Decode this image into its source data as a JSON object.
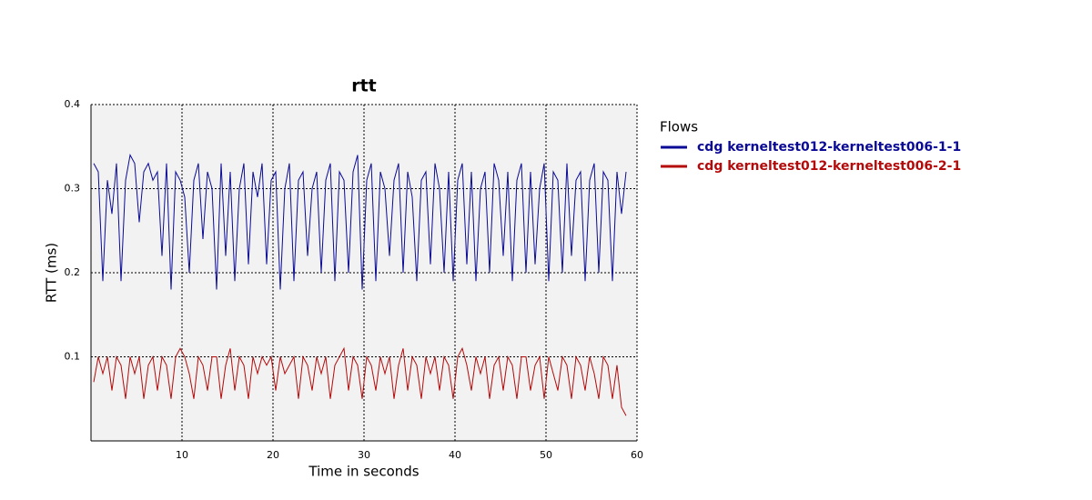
{
  "chart_data": {
    "type": "line",
    "title": "rtt",
    "x_label": "Time in seconds",
    "y_label": "RTT (ms)",
    "legend_title": "Flows",
    "legend": "right",
    "grid": true,
    "xlim": [
      0,
      60
    ],
    "xticks": [
      10,
      20,
      30,
      40,
      50,
      60
    ],
    "ylim": [
      0,
      0.4
    ],
    "yticks": [
      0.1,
      0.2,
      0.3,
      0.4
    ],
    "x": [
      0.3,
      0.8,
      1.3,
      1.8,
      2.3,
      2.8,
      3.3,
      3.8,
      4.3,
      4.8,
      5.3,
      5.8,
      6.3,
      6.8,
      7.3,
      7.8,
      8.3,
      8.8,
      9.3,
      9.8,
      10.3,
      10.8,
      11.3,
      11.8,
      12.3,
      12.8,
      13.3,
      13.8,
      14.3,
      14.8,
      15.3,
      15.8,
      16.3,
      16.8,
      17.3,
      17.8,
      18.3,
      18.8,
      19.3,
      19.8,
      20.3,
      20.8,
      21.3,
      21.8,
      22.3,
      22.8,
      23.3,
      23.8,
      24.3,
      24.8,
      25.3,
      25.8,
      26.3,
      26.8,
      27.3,
      27.8,
      28.3,
      28.8,
      29.3,
      29.8,
      30.3,
      30.8,
      31.3,
      31.8,
      32.3,
      32.8,
      33.3,
      33.8,
      34.3,
      34.8,
      35.3,
      35.8,
      36.3,
      36.8,
      37.3,
      37.8,
      38.3,
      38.8,
      39.3,
      39.8,
      40.3,
      40.8,
      41.3,
      41.8,
      42.3,
      42.8,
      43.3,
      43.8,
      44.3,
      44.8,
      45.3,
      45.8,
      46.3,
      46.8,
      47.3,
      47.8,
      48.3,
      48.8,
      49.3,
      49.8,
      50.3,
      50.8,
      51.3,
      51.8,
      52.3,
      52.8,
      53.3,
      53.8,
      54.3,
      54.8,
      55.3,
      55.8,
      56.3,
      56.8,
      57.3,
      57.8,
      58.3,
      58.8
    ],
    "series": [
      {
        "name": "cdg kerneltest012-kerneltest006-1-1",
        "color": "#0a0a96",
        "values": [
          0.33,
          0.32,
          0.19,
          0.31,
          0.27,
          0.33,
          0.19,
          0.31,
          0.34,
          0.33,
          0.26,
          0.32,
          0.33,
          0.31,
          0.32,
          0.22,
          0.33,
          0.18,
          0.32,
          0.31,
          0.29,
          0.2,
          0.31,
          0.33,
          0.24,
          0.32,
          0.3,
          0.18,
          0.33,
          0.22,
          0.32,
          0.19,
          0.3,
          0.33,
          0.21,
          0.32,
          0.29,
          0.33,
          0.21,
          0.31,
          0.32,
          0.18,
          0.3,
          0.33,
          0.19,
          0.31,
          0.32,
          0.22,
          0.3,
          0.32,
          0.2,
          0.31,
          0.33,
          0.19,
          0.32,
          0.31,
          0.2,
          0.32,
          0.34,
          0.18,
          0.31,
          0.33,
          0.19,
          0.32,
          0.3,
          0.22,
          0.31,
          0.33,
          0.2,
          0.32,
          0.29,
          0.19,
          0.31,
          0.32,
          0.21,
          0.33,
          0.3,
          0.2,
          0.32,
          0.19,
          0.31,
          0.33,
          0.21,
          0.32,
          0.19,
          0.3,
          0.32,
          0.2,
          0.33,
          0.31,
          0.22,
          0.32,
          0.19,
          0.31,
          0.33,
          0.2,
          0.32,
          0.21,
          0.3,
          0.33,
          0.19,
          0.32,
          0.31,
          0.2,
          0.33,
          0.22,
          0.31,
          0.32,
          0.19,
          0.31,
          0.33,
          0.2,
          0.32,
          0.31,
          0.19,
          0.32,
          0.27,
          0.32
        ]
      },
      {
        "name": "cdg kerneltest012-kerneltest006-2-1",
        "color": "#b40a0a",
        "values": [
          0.07,
          0.1,
          0.08,
          0.1,
          0.06,
          0.1,
          0.09,
          0.05,
          0.1,
          0.08,
          0.1,
          0.05,
          0.09,
          0.1,
          0.06,
          0.1,
          0.09,
          0.05,
          0.1,
          0.11,
          0.1,
          0.08,
          0.05,
          0.1,
          0.09,
          0.06,
          0.1,
          0.1,
          0.05,
          0.09,
          0.11,
          0.06,
          0.1,
          0.09,
          0.05,
          0.1,
          0.08,
          0.1,
          0.09,
          0.1,
          0.06,
          0.1,
          0.08,
          0.09,
          0.1,
          0.05,
          0.1,
          0.09,
          0.06,
          0.1,
          0.08,
          0.1,
          0.05,
          0.09,
          0.1,
          0.11,
          0.06,
          0.1,
          0.09,
          0.05,
          0.1,
          0.09,
          0.06,
          0.1,
          0.08,
          0.1,
          0.05,
          0.09,
          0.11,
          0.06,
          0.1,
          0.09,
          0.05,
          0.1,
          0.08,
          0.1,
          0.06,
          0.1,
          0.09,
          0.05,
          0.1,
          0.11,
          0.09,
          0.06,
          0.1,
          0.08,
          0.1,
          0.05,
          0.09,
          0.1,
          0.06,
          0.1,
          0.09,
          0.05,
          0.1,
          0.1,
          0.06,
          0.09,
          0.1,
          0.05,
          0.1,
          0.08,
          0.06,
          0.1,
          0.09,
          0.05,
          0.1,
          0.09,
          0.06,
          0.1,
          0.08,
          0.05,
          0.1,
          0.09,
          0.05,
          0.09,
          0.04,
          0.03
        ]
      }
    ]
  }
}
